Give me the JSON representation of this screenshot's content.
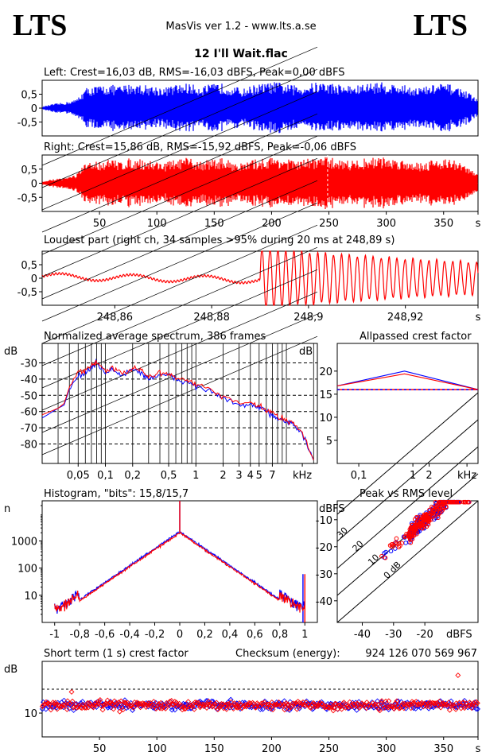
{
  "header": {
    "logo_left": "LTS",
    "logo_right": "LTS",
    "app_version": "MasVis ver 1.2 - www.lts.a.se",
    "track_title": "12 I'll Wait.flac"
  },
  "colors": {
    "left": "#0000ff",
    "right": "#ff0000",
    "axes": "#000000"
  },
  "chart_data": [
    {
      "id": "left-waveform",
      "type": "line",
      "title": "Left: Crest=16,03 dB, RMS=-16,03 dBFS, Peak=0,00 dBFS",
      "series": [
        {
          "name": "Left",
          "color": "#0000ff"
        }
      ],
      "yticks": [
        "0,5",
        "0",
        "-0,5"
      ],
      "y_tick_values": [
        0.5,
        0,
        -0.5
      ],
      "ylim": [
        -1,
        1
      ],
      "xlim": [
        0,
        380
      ],
      "envelope": [
        0.05,
        0.15,
        0.2,
        0.3,
        0.75,
        0.8,
        0.85,
        0.8,
        0.9,
        0.85,
        0.8,
        0.75,
        0.85,
        0.9,
        0.8,
        0.85,
        0.9,
        0.8,
        0.7,
        0.85,
        0.9,
        0.95,
        0.85,
        0.8,
        0.9,
        0.95,
        0.9,
        0.85,
        0.8,
        0.9,
        0.95,
        0.9,
        0.85,
        0.8,
        0.75,
        0.85,
        0.9,
        0.8,
        0.6,
        0.3
      ]
    },
    {
      "id": "right-waveform",
      "type": "line",
      "title": "Right: Crest=15,86 dB, RMS=-15,92 dBFS, Peak=-0,06 dBFS",
      "series": [
        {
          "name": "Right",
          "color": "#ff0000"
        }
      ],
      "yticks": [
        "0,5",
        "0",
        "-0,5"
      ],
      "y_tick_values": [
        0.5,
        0,
        -0.5
      ],
      "ylim": [
        -1,
        1
      ],
      "xlim": [
        0,
        380
      ],
      "xticks": [
        "50",
        "100",
        "150",
        "200",
        "250",
        "300",
        "350",
        "s"
      ],
      "x_tick_values": [
        50,
        100,
        150,
        200,
        250,
        300,
        350,
        380
      ],
      "marker_x": 248.89,
      "envelope": [
        0.05,
        0.15,
        0.2,
        0.3,
        0.75,
        0.8,
        0.85,
        0.8,
        0.9,
        0.85,
        0.8,
        0.75,
        0.85,
        0.9,
        0.8,
        0.85,
        0.9,
        0.8,
        0.7,
        0.85,
        0.9,
        0.95,
        0.85,
        0.8,
        0.9,
        0.95,
        0.9,
        0.85,
        0.8,
        0.9,
        0.95,
        0.9,
        0.85,
        0.8,
        0.75,
        0.85,
        0.9,
        0.8,
        0.6,
        0.3
      ]
    },
    {
      "id": "loudest-part",
      "type": "line",
      "title": "Loudest part (right ch, 34 samples >95% during 20 ms at 248,89 s)",
      "series": [
        {
          "name": "Right",
          "color": "#ff0000"
        }
      ],
      "yticks": [
        "0,5",
        "0",
        "-0,5"
      ],
      "y_tick_values": [
        0.5,
        0,
        -0.5
      ],
      "ylim": [
        -1,
        1
      ],
      "xlim": [
        248.845,
        248.935
      ],
      "xticks": [
        "248,86",
        "248,88",
        "248,9",
        "248,92",
        "s"
      ],
      "x_tick_values": [
        248.86,
        248.88,
        248.9,
        248.92,
        248.935
      ],
      "onset": 248.89
    },
    {
      "id": "avg-spectrum",
      "type": "line",
      "title": "Normalized average spectrum, 386 frames",
      "ylabel": "dB",
      "yticks": [
        "-30",
        "-40",
        "-50",
        "-60",
        "-70",
        "-80"
      ],
      "y_tick_values": [
        -30,
        -40,
        -50,
        -60,
        -70,
        -80
      ],
      "ylim": [
        -92,
        -18
      ],
      "xscale": "log",
      "xlim": [
        0.02,
        22
      ],
      "xticks": [
        "0,05",
        "0,1",
        "0,2",
        "0,5",
        "1",
        "2",
        "3",
        "4",
        "5",
        "7",
        "kHz"
      ],
      "x_tick_values": [
        0.05,
        0.1,
        0.2,
        0.5,
        1,
        2,
        3,
        4,
        5,
        7,
        15
      ],
      "x": [
        0.02,
        0.03,
        0.035,
        0.04,
        0.05,
        0.06,
        0.07,
        0.08,
        0.1,
        0.12,
        0.15,
        0.2,
        0.25,
        0.3,
        0.4,
        0.5,
        0.6,
        0.8,
        1,
        1.5,
        2,
        3,
        4,
        5,
        6,
        7,
        8,
        10,
        12,
        15,
        20
      ],
      "series": [
        {
          "name": "Left",
          "color": "#0000ff",
          "values": [
            -64,
            -58,
            -56,
            -46,
            -38,
            -36,
            -33,
            -30,
            -36,
            -34,
            -38,
            -34,
            -36,
            -40,
            -37,
            -38,
            -40,
            -42,
            -44,
            -48,
            -52,
            -56,
            -56,
            -58,
            -60,
            -62,
            -64,
            -66,
            -68,
            -74,
            -90
          ]
        },
        {
          "name": "Right",
          "color": "#ff0000",
          "values": [
            -62,
            -58,
            -55,
            -45,
            -36,
            -35,
            -32,
            -29,
            -35,
            -33,
            -37,
            -33,
            -35,
            -39,
            -36,
            -37,
            -39,
            -41,
            -43,
            -47,
            -51,
            -55,
            -55,
            -57,
            -59,
            -61,
            -63,
            -65,
            -67,
            -73,
            -90
          ]
        }
      ]
    },
    {
      "id": "allpassed-crest",
      "type": "line",
      "title": "Allpassed crest factor",
      "ylabel": "dB",
      "yticks": [
        "20",
        "15",
        "10",
        "5"
      ],
      "y_tick_values": [
        20,
        15,
        10,
        5
      ],
      "ylim": [
        0,
        26
      ],
      "xscale": "log",
      "xlim": [
        0.04,
        16
      ],
      "xticks": [
        "0,1",
        "1",
        "2",
        "kHz"
      ],
      "x_tick_values": [
        0.1,
        1,
        2,
        10
      ],
      "x": [
        0.04,
        0.7,
        16
      ],
      "reference": 16.0,
      "series": [
        {
          "name": "Left",
          "color": "#0000ff",
          "values": [
            16.8,
            20.0,
            16.0
          ]
        },
        {
          "name": "Right",
          "color": "#ff0000",
          "values": [
            16.8,
            19.4,
            16.0
          ]
        }
      ]
    },
    {
      "id": "histogram",
      "type": "line",
      "title": "Histogram, \"bits\": 15,8/15,7",
      "ylabel": "n",
      "yscale": "log",
      "yticks": [
        "1000",
        "100",
        "10"
      ],
      "y_tick_values": [
        1000,
        100,
        10
      ],
      "ylim": [
        1,
        30000
      ],
      "xlim": [
        -1.1,
        1.1
      ],
      "xticks": [
        "-1",
        "-0,8",
        "-0,6",
        "-0,4",
        "-0,2",
        "0",
        "0,2",
        "0,4",
        "0,6",
        "0,8",
        "1"
      ],
      "x_tick_values": [
        -1,
        -0.8,
        -0.6,
        -0.4,
        -0.2,
        0,
        0.2,
        0.4,
        0.6,
        0.8,
        1
      ],
      "series": [
        {
          "name": "Left",
          "color": "#0000ff",
          "peak": 2200,
          "edge": 3,
          "spike": 30000
        },
        {
          "name": "Right",
          "color": "#ff0000",
          "peak": 2000,
          "edge": 2.5,
          "spike": 30000
        }
      ]
    },
    {
      "id": "peak-vs-rms",
      "type": "scatter",
      "title": "Peak vs RMS level",
      "xlabel": "dBFS",
      "ylabel": "dBFS",
      "xlim": [
        -48,
        -3
      ],
      "ylim": [
        -48,
        -3
      ],
      "xticks": [
        "-40",
        "-30",
        "-20"
      ],
      "x_tick_values": [
        -40,
        -30,
        -20
      ],
      "yticks": [
        "-10",
        "-20",
        "-30",
        "-40"
      ],
      "y_tick_values": [
        -10,
        -20,
        -30,
        -40
      ],
      "diagonals": [
        "40",
        "30",
        "20",
        "10",
        "0 dB"
      ],
      "diagonal_offsets": [
        40,
        30,
        20,
        10,
        0
      ],
      "series": [
        {
          "name": "Left",
          "color": "#0000ff",
          "count": 180
        },
        {
          "name": "Right",
          "color": "#ff0000",
          "count": 200
        }
      ]
    },
    {
      "id": "short-term-crest",
      "type": "scatter",
      "title": "Short term (1 s) crest factor",
      "ylabel": "dB",
      "yticks": [
        "10"
      ],
      "y_tick_values": [
        10
      ],
      "yscale": "log",
      "ylim": [
        5,
        45
      ],
      "xlim": [
        0,
        380
      ],
      "xticks": [
        "50",
        "100",
        "150",
        "200",
        "250",
        "300",
        "350",
        "s"
      ],
      "x_tick_values": [
        50,
        100,
        150,
        200,
        250,
        300,
        350,
        380
      ],
      "reference": 20,
      "series": [
        {
          "name": "Left",
          "color": "#0000ff",
          "count": 380
        },
        {
          "name": "Right",
          "color": "#ff0000",
          "count": 380
        }
      ]
    }
  ],
  "checksum": {
    "label": "Checksum (energy):",
    "value": "924 126 070 569 967"
  }
}
